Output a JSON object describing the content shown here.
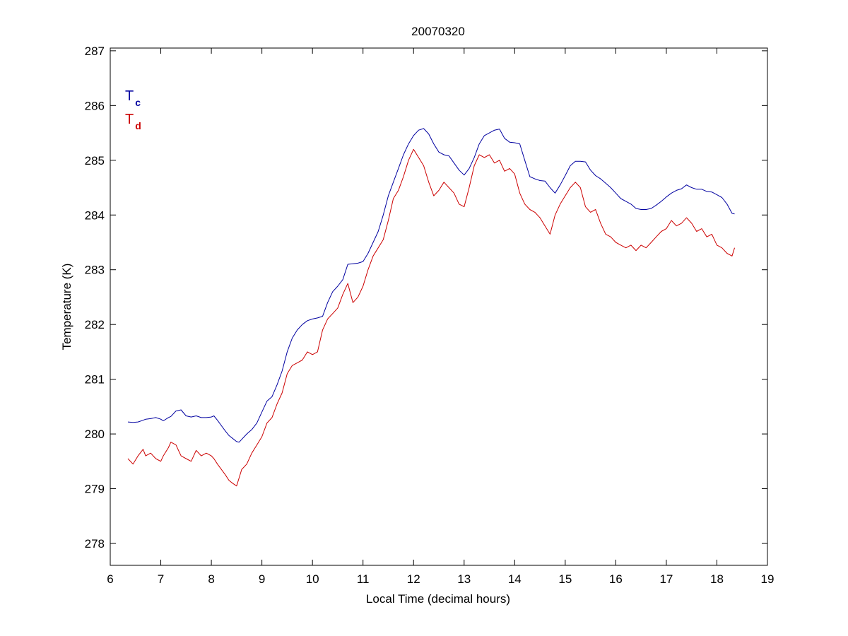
{
  "chart_data": {
    "type": "line",
    "title": "20070320",
    "xlabel": "Local Time (decimal hours)",
    "ylabel": "Temperature (K)",
    "xlim": [
      6,
      19
    ],
    "ylim": [
      277.6,
      287.05
    ],
    "xticks": [
      6,
      7,
      8,
      9,
      10,
      11,
      12,
      13,
      14,
      15,
      16,
      17,
      18,
      19
    ],
    "yticks": [
      278,
      279,
      280,
      281,
      282,
      283,
      284,
      285,
      286,
      287
    ],
    "grid": false,
    "legend_position": "top-left",
    "series": [
      {
        "name": "T",
        "subscript": "c",
        "color": "#0000a0",
        "x": [
          6.35,
          6.45,
          6.55,
          6.65,
          6.7,
          6.8,
          6.9,
          7.0,
          7.05,
          7.15,
          7.2,
          7.3,
          7.4,
          7.5,
          7.6,
          7.7,
          7.8,
          7.9,
          8.0,
          8.05,
          8.12,
          8.2,
          8.28,
          8.35,
          8.42,
          8.5,
          8.55,
          8.6,
          8.7,
          8.8,
          8.9,
          9.0,
          9.1,
          9.2,
          9.3,
          9.4,
          9.5,
          9.6,
          9.7,
          9.8,
          9.9,
          10.0,
          10.1,
          10.2,
          10.3,
          10.4,
          10.5,
          10.6,
          10.7,
          10.8,
          10.9,
          11.0,
          11.1,
          11.2,
          11.3,
          11.4,
          11.5,
          11.6,
          11.7,
          11.8,
          11.9,
          12.0,
          12.1,
          12.2,
          12.3,
          12.4,
          12.5,
          12.6,
          12.7,
          12.8,
          12.9,
          13.0,
          13.1,
          13.2,
          13.3,
          13.4,
          13.5,
          13.6,
          13.7,
          13.8,
          13.9,
          14.0,
          14.1,
          14.2,
          14.3,
          14.4,
          14.5,
          14.6,
          14.7,
          14.8,
          14.9,
          15.0,
          15.1,
          15.2,
          15.3,
          15.4,
          15.5,
          15.6,
          15.7,
          15.8,
          15.9,
          16.0,
          16.1,
          16.2,
          16.3,
          16.4,
          16.5,
          16.6,
          16.7,
          16.8,
          16.9,
          17.0,
          17.1,
          17.2,
          17.3,
          17.4,
          17.5,
          17.6,
          17.7,
          17.8,
          17.9,
          18.0,
          18.1,
          18.2,
          18.3,
          18.35
        ],
        "y": [
          280.22,
          280.21,
          280.22,
          280.25,
          280.27,
          280.28,
          280.3,
          280.27,
          280.24,
          280.3,
          280.32,
          280.42,
          280.44,
          280.33,
          280.31,
          280.33,
          280.3,
          280.3,
          280.31,
          280.33,
          280.25,
          280.15,
          280.05,
          279.97,
          279.92,
          279.86,
          279.85,
          279.9,
          280.0,
          280.08,
          280.2,
          280.4,
          280.6,
          280.68,
          280.9,
          281.15,
          281.5,
          281.75,
          281.9,
          282.0,
          282.07,
          282.1,
          282.12,
          282.15,
          282.4,
          282.6,
          282.7,
          282.82,
          283.1,
          283.11,
          283.12,
          283.15,
          283.3,
          283.5,
          283.7,
          284.0,
          284.35,
          284.6,
          284.85,
          285.1,
          285.3,
          285.45,
          285.55,
          285.58,
          285.48,
          285.3,
          285.15,
          285.1,
          285.08,
          284.95,
          284.82,
          284.73,
          284.85,
          285.05,
          285.3,
          285.45,
          285.5,
          285.55,
          285.57,
          285.4,
          285.33,
          285.32,
          285.3,
          285.0,
          284.7,
          284.66,
          284.63,
          284.62,
          284.5,
          284.4,
          284.55,
          284.72,
          284.9,
          284.98,
          284.98,
          284.97,
          284.82,
          284.72,
          284.66,
          284.58,
          284.5,
          284.4,
          284.3,
          284.25,
          284.2,
          284.12,
          284.1,
          284.1,
          284.12,
          284.18,
          284.25,
          284.33,
          284.4,
          284.45,
          284.48,
          284.55,
          284.5,
          284.47,
          284.47,
          284.43,
          284.42,
          284.37,
          284.32,
          284.2,
          284.03,
          284.02
        ]
      },
      {
        "name": "T",
        "subscript": "d",
        "color": "#cc0000",
        "x": [
          6.35,
          6.45,
          6.55,
          6.65,
          6.7,
          6.8,
          6.9,
          7.0,
          7.05,
          7.15,
          7.2,
          7.3,
          7.4,
          7.5,
          7.6,
          7.7,
          7.8,
          7.9,
          8.0,
          8.05,
          8.12,
          8.2,
          8.28,
          8.35,
          8.42,
          8.5,
          8.55,
          8.6,
          8.7,
          8.8,
          8.9,
          9.0,
          9.1,
          9.2,
          9.3,
          9.4,
          9.5,
          9.6,
          9.7,
          9.8,
          9.9,
          10.0,
          10.1,
          10.2,
          10.3,
          10.4,
          10.5,
          10.6,
          10.7,
          10.8,
          10.9,
          11.0,
          11.1,
          11.2,
          11.3,
          11.4,
          11.5,
          11.6,
          11.7,
          11.8,
          11.9,
          12.0,
          12.1,
          12.2,
          12.3,
          12.4,
          12.5,
          12.6,
          12.7,
          12.8,
          12.9,
          13.0,
          13.1,
          13.2,
          13.3,
          13.4,
          13.5,
          13.6,
          13.7,
          13.8,
          13.9,
          14.0,
          14.1,
          14.2,
          14.3,
          14.4,
          14.5,
          14.6,
          14.7,
          14.8,
          14.9,
          15.0,
          15.1,
          15.2,
          15.3,
          15.4,
          15.5,
          15.6,
          15.7,
          15.8,
          15.9,
          16.0,
          16.1,
          16.2,
          16.3,
          16.4,
          16.5,
          16.6,
          16.7,
          16.8,
          16.9,
          17.0,
          17.1,
          17.2,
          17.3,
          17.4,
          17.5,
          17.6,
          17.7,
          17.8,
          17.9,
          18.0,
          18.1,
          18.2,
          18.3,
          18.35
        ],
        "y": [
          279.55,
          279.45,
          279.6,
          279.72,
          279.6,
          279.65,
          279.55,
          279.5,
          279.6,
          279.75,
          279.85,
          279.8,
          279.6,
          279.55,
          279.5,
          279.7,
          279.6,
          279.65,
          279.6,
          279.55,
          279.45,
          279.35,
          279.25,
          279.15,
          279.1,
          279.05,
          279.2,
          279.35,
          279.45,
          279.65,
          279.8,
          279.95,
          280.2,
          280.3,
          280.55,
          280.75,
          281.1,
          281.25,
          281.3,
          281.35,
          281.5,
          281.45,
          281.5,
          281.9,
          282.1,
          282.2,
          282.3,
          282.55,
          282.75,
          282.4,
          282.5,
          282.7,
          283.0,
          283.25,
          283.4,
          283.55,
          283.9,
          284.3,
          284.45,
          284.7,
          285.0,
          285.2,
          285.05,
          284.9,
          284.6,
          284.35,
          284.45,
          284.6,
          284.5,
          284.4,
          284.2,
          284.15,
          284.5,
          284.9,
          285.1,
          285.05,
          285.1,
          284.95,
          285.0,
          284.8,
          284.85,
          284.75,
          284.4,
          284.2,
          284.1,
          284.05,
          283.95,
          283.8,
          283.65,
          284.0,
          284.2,
          284.35,
          284.5,
          284.6,
          284.5,
          284.15,
          284.05,
          284.1,
          283.85,
          283.65,
          283.6,
          283.5,
          283.45,
          283.4,
          283.45,
          283.35,
          283.45,
          283.4,
          283.5,
          283.6,
          283.7,
          283.75,
          283.9,
          283.8,
          283.85,
          283.95,
          283.85,
          283.7,
          283.75,
          283.6,
          283.65,
          283.45,
          283.4,
          283.3,
          283.25,
          283.4
        ]
      }
    ]
  }
}
